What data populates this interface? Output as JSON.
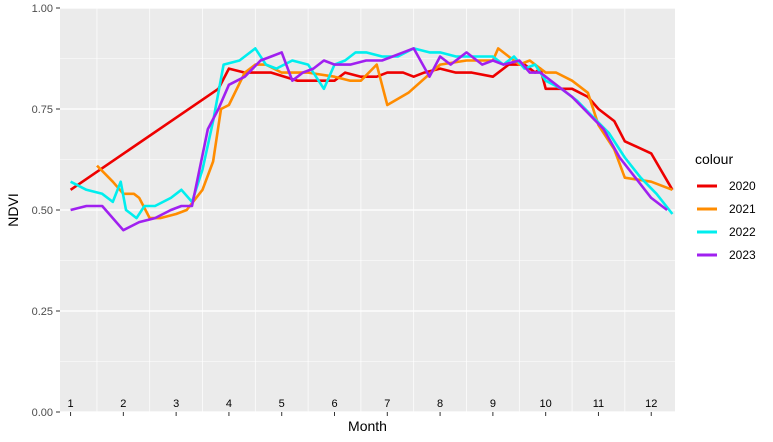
{
  "chart_data": {
    "type": "line",
    "title": "",
    "xlabel": "Month",
    "ylabel": "NDVI",
    "xlim": [
      0.8,
      12.45
    ],
    "ylim": [
      0,
      1
    ],
    "grid": true,
    "background": "#ebebeb",
    "y_ticks": [
      0,
      0.25,
      0.5,
      0.75,
      1
    ],
    "y_tick_labels": [
      "0.00",
      "0.25",
      "0.50",
      "0.75",
      "1.00"
    ],
    "x_categories": [
      "1",
      "2",
      "3",
      "4",
      "5",
      "6",
      "7",
      "8",
      "9",
      "10",
      "11",
      "12"
    ],
    "legend": {
      "title": "colour",
      "position": "right"
    },
    "series": [
      {
        "name": "2020",
        "color": "#ee0000",
        "x": [
          1.0,
          3.8,
          4.0,
          4.3,
          4.6,
          4.8,
          5.3,
          5.5,
          6.0,
          6.2,
          6.5,
          6.8,
          7.0,
          7.3,
          7.5,
          7.7,
          8.0,
          8.3,
          8.6,
          9.0,
          9.3,
          9.6,
          9.8,
          9.9,
          10.0,
          10.2,
          10.5,
          10.8,
          11.0,
          11.3,
          11.5,
          12.0,
          12.4
        ],
        "y": [
          0.55,
          0.8,
          0.85,
          0.84,
          0.84,
          0.84,
          0.82,
          0.82,
          0.82,
          0.84,
          0.83,
          0.83,
          0.84,
          0.84,
          0.83,
          0.84,
          0.85,
          0.84,
          0.84,
          0.83,
          0.86,
          0.86,
          0.84,
          0.85,
          0.8,
          0.8,
          0.8,
          0.78,
          0.75,
          0.72,
          0.67,
          0.64,
          0.55
        ]
      },
      {
        "name": "2021",
        "color": "#ff8c00",
        "x": [
          1.5,
          1.8,
          2.0,
          2.2,
          2.3,
          2.5,
          2.7,
          3.0,
          3.2,
          3.5,
          3.7,
          3.85,
          4.0,
          4.3,
          4.5,
          4.7,
          5.0,
          5.5,
          6.0,
          6.3,
          6.5,
          6.8,
          7.0,
          7.4,
          8.0,
          8.5,
          9.0,
          9.1,
          9.3,
          9.5,
          9.7,
          9.8,
          10.0,
          10.2,
          10.5,
          10.8,
          11.0,
          11.3,
          11.5,
          12.0,
          12.4
        ],
        "y": [
          0.61,
          0.57,
          0.54,
          0.54,
          0.53,
          0.48,
          0.48,
          0.49,
          0.5,
          0.55,
          0.62,
          0.75,
          0.76,
          0.84,
          0.86,
          0.86,
          0.84,
          0.84,
          0.83,
          0.82,
          0.82,
          0.86,
          0.76,
          0.79,
          0.86,
          0.87,
          0.87,
          0.9,
          0.88,
          0.86,
          0.87,
          0.86,
          0.84,
          0.84,
          0.82,
          0.79,
          0.71,
          0.65,
          0.58,
          0.57,
          0.55
        ]
      },
      {
        "name": "2022",
        "color": "#00eeee",
        "x": [
          1.0,
          1.3,
          1.6,
          1.8,
          1.95,
          2.05,
          2.15,
          2.25,
          2.4,
          2.6,
          2.9,
          3.1,
          3.3,
          3.5,
          3.7,
          3.9,
          4.2,
          4.5,
          4.7,
          4.9,
          5.2,
          5.5,
          5.8,
          6.0,
          6.2,
          6.4,
          6.6,
          6.9,
          7.2,
          7.5,
          7.8,
          8.0,
          8.3,
          8.6,
          9.0,
          9.2,
          9.4,
          9.6,
          9.8,
          10.0,
          10.3,
          10.6,
          10.9,
          11.2,
          11.5,
          11.8,
          12.1,
          12.4
        ],
        "y": [
          0.57,
          0.55,
          0.54,
          0.52,
          0.57,
          0.5,
          0.49,
          0.48,
          0.51,
          0.51,
          0.53,
          0.55,
          0.52,
          0.6,
          0.72,
          0.86,
          0.87,
          0.9,
          0.86,
          0.85,
          0.87,
          0.86,
          0.8,
          0.86,
          0.87,
          0.89,
          0.89,
          0.88,
          0.88,
          0.9,
          0.89,
          0.89,
          0.88,
          0.88,
          0.88,
          0.86,
          0.88,
          0.85,
          0.86,
          0.82,
          0.8,
          0.77,
          0.73,
          0.69,
          0.63,
          0.58,
          0.54,
          0.49
        ]
      },
      {
        "name": "2023",
        "color": "#a020f0",
        "x": [
          1.0,
          1.3,
          1.6,
          2.0,
          2.3,
          2.6,
          2.9,
          3.1,
          3.3,
          3.6,
          3.8,
          4.0,
          4.3,
          4.6,
          4.8,
          5.0,
          5.2,
          5.4,
          5.6,
          5.8,
          6.0,
          6.3,
          6.6,
          6.9,
          7.1,
          7.3,
          7.5,
          7.8,
          8.0,
          8.2,
          8.5,
          8.8,
          9.0,
          9.2,
          9.5,
          9.7,
          9.9,
          10.2,
          10.5,
          10.8,
          11.1,
          11.4,
          11.7,
          12.0,
          12.3
        ],
        "y": [
          0.5,
          0.51,
          0.51,
          0.45,
          0.47,
          0.48,
          0.5,
          0.51,
          0.51,
          0.7,
          0.75,
          0.81,
          0.83,
          0.87,
          0.88,
          0.89,
          0.82,
          0.84,
          0.85,
          0.87,
          0.86,
          0.86,
          0.87,
          0.87,
          0.88,
          0.89,
          0.9,
          0.83,
          0.88,
          0.86,
          0.89,
          0.86,
          0.87,
          0.86,
          0.87,
          0.84,
          0.84,
          0.81,
          0.78,
          0.74,
          0.7,
          0.63,
          0.58,
          0.53,
          0.5
        ]
      }
    ]
  }
}
